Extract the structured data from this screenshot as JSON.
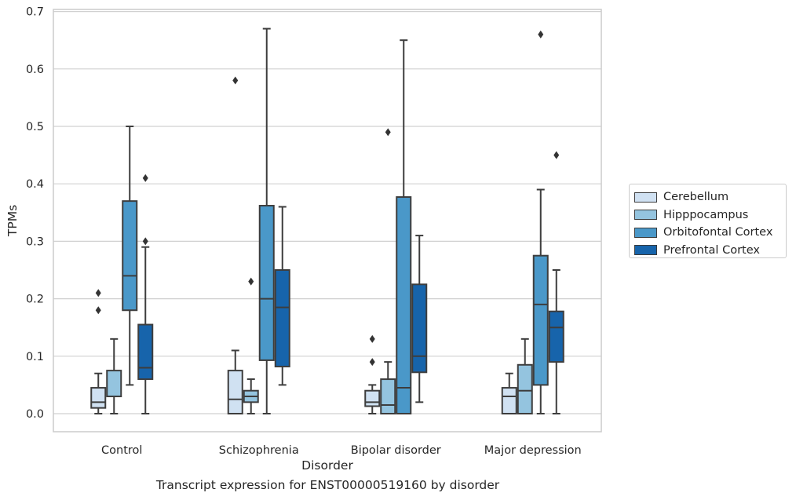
{
  "chart_data": {
    "type": "boxplot",
    "xlabel": "Disorder",
    "ylabel": "TPMs",
    "ylim": [
      -0.032,
      0.705
    ],
    "yticks": [
      0.0,
      0.1,
      0.2,
      0.3,
      0.4,
      0.5,
      0.6,
      0.7
    ],
    "ytick_labels": [
      "0.0",
      "0.1",
      "0.2",
      "0.3",
      "0.4",
      "0.5",
      "0.6",
      "0.7"
    ],
    "grid": "horizontal",
    "legend_placement": "right, outside plot",
    "categories": [
      "Control",
      "Schizophrenia",
      "Bipolar disorder",
      "Major depression"
    ],
    "series": [
      {
        "name": "Cerebellum",
        "color": "#d0e1f2",
        "boxes": [
          {
            "whislo": 0.0,
            "q1": 0.01,
            "med": 0.02,
            "q3": 0.045,
            "whishi": 0.07,
            "fliers": [
              0.18,
              0.21
            ]
          },
          {
            "whislo": 0.0,
            "q1": 0.0,
            "med": 0.025,
            "q3": 0.075,
            "whishi": 0.11,
            "fliers": [
              0.58
            ]
          },
          {
            "whislo": 0.0,
            "q1": 0.013,
            "med": 0.02,
            "q3": 0.04,
            "whishi": 0.05,
            "fliers": [
              0.09,
              0.13
            ]
          },
          {
            "whislo": 0.0,
            "q1": 0.0,
            "med": 0.03,
            "q3": 0.045,
            "whishi": 0.07,
            "fliers": []
          }
        ]
      },
      {
        "name": "Hipppocampus",
        "color": "#94c4df",
        "boxes": [
          {
            "whislo": 0.0,
            "q1": 0.03,
            "med": 0.03,
            "q3": 0.075,
            "whishi": 0.13,
            "fliers": []
          },
          {
            "whislo": 0.0,
            "q1": 0.02,
            "med": 0.03,
            "q3": 0.04,
            "whishi": 0.06,
            "fliers": [
              0.23
            ]
          },
          {
            "whislo": 0.0,
            "q1": 0.0,
            "med": 0.015,
            "q3": 0.06,
            "whishi": 0.09,
            "fliers": [
              0.49
            ]
          },
          {
            "whislo": 0.0,
            "q1": 0.0,
            "med": 0.04,
            "q3": 0.085,
            "whishi": 0.13,
            "fliers": []
          }
        ]
      },
      {
        "name": "Orbitofontal Cortex",
        "color": "#4a98c9",
        "boxes": [
          {
            "whislo": 0.05,
            "q1": 0.18,
            "med": 0.24,
            "q3": 0.37,
            "whishi": 0.5,
            "fliers": []
          },
          {
            "whislo": 0.0,
            "q1": 0.093,
            "med": 0.2,
            "q3": 0.362,
            "whishi": 0.67,
            "fliers": []
          },
          {
            "whislo": 0.0,
            "q1": 0.0,
            "med": 0.045,
            "q3": 0.377,
            "whishi": 0.65,
            "fliers": []
          },
          {
            "whislo": 0.0,
            "q1": 0.05,
            "med": 0.19,
            "q3": 0.275,
            "whishi": 0.39,
            "fliers": [
              0.66
            ]
          }
        ]
      },
      {
        "name": "Prefrontal Cortex",
        "color": "#1764ab",
        "boxes": [
          {
            "whislo": 0.0,
            "q1": 0.06,
            "med": 0.08,
            "q3": 0.155,
            "whishi": 0.29,
            "fliers": [
              0.3,
              0.41
            ]
          },
          {
            "whislo": 0.05,
            "q1": 0.082,
            "med": 0.185,
            "q3": 0.25,
            "whishi": 0.36,
            "fliers": []
          },
          {
            "whislo": 0.02,
            "q1": 0.072,
            "med": 0.1,
            "q3": 0.225,
            "whishi": 0.31,
            "fliers": []
          },
          {
            "whislo": 0.0,
            "q1": 0.09,
            "med": 0.15,
            "q3": 0.178,
            "whishi": 0.25,
            "fliers": [
              0.45
            ]
          }
        ]
      }
    ],
    "caption": "Transcript expression for ENST00000519160 by disorder"
  }
}
